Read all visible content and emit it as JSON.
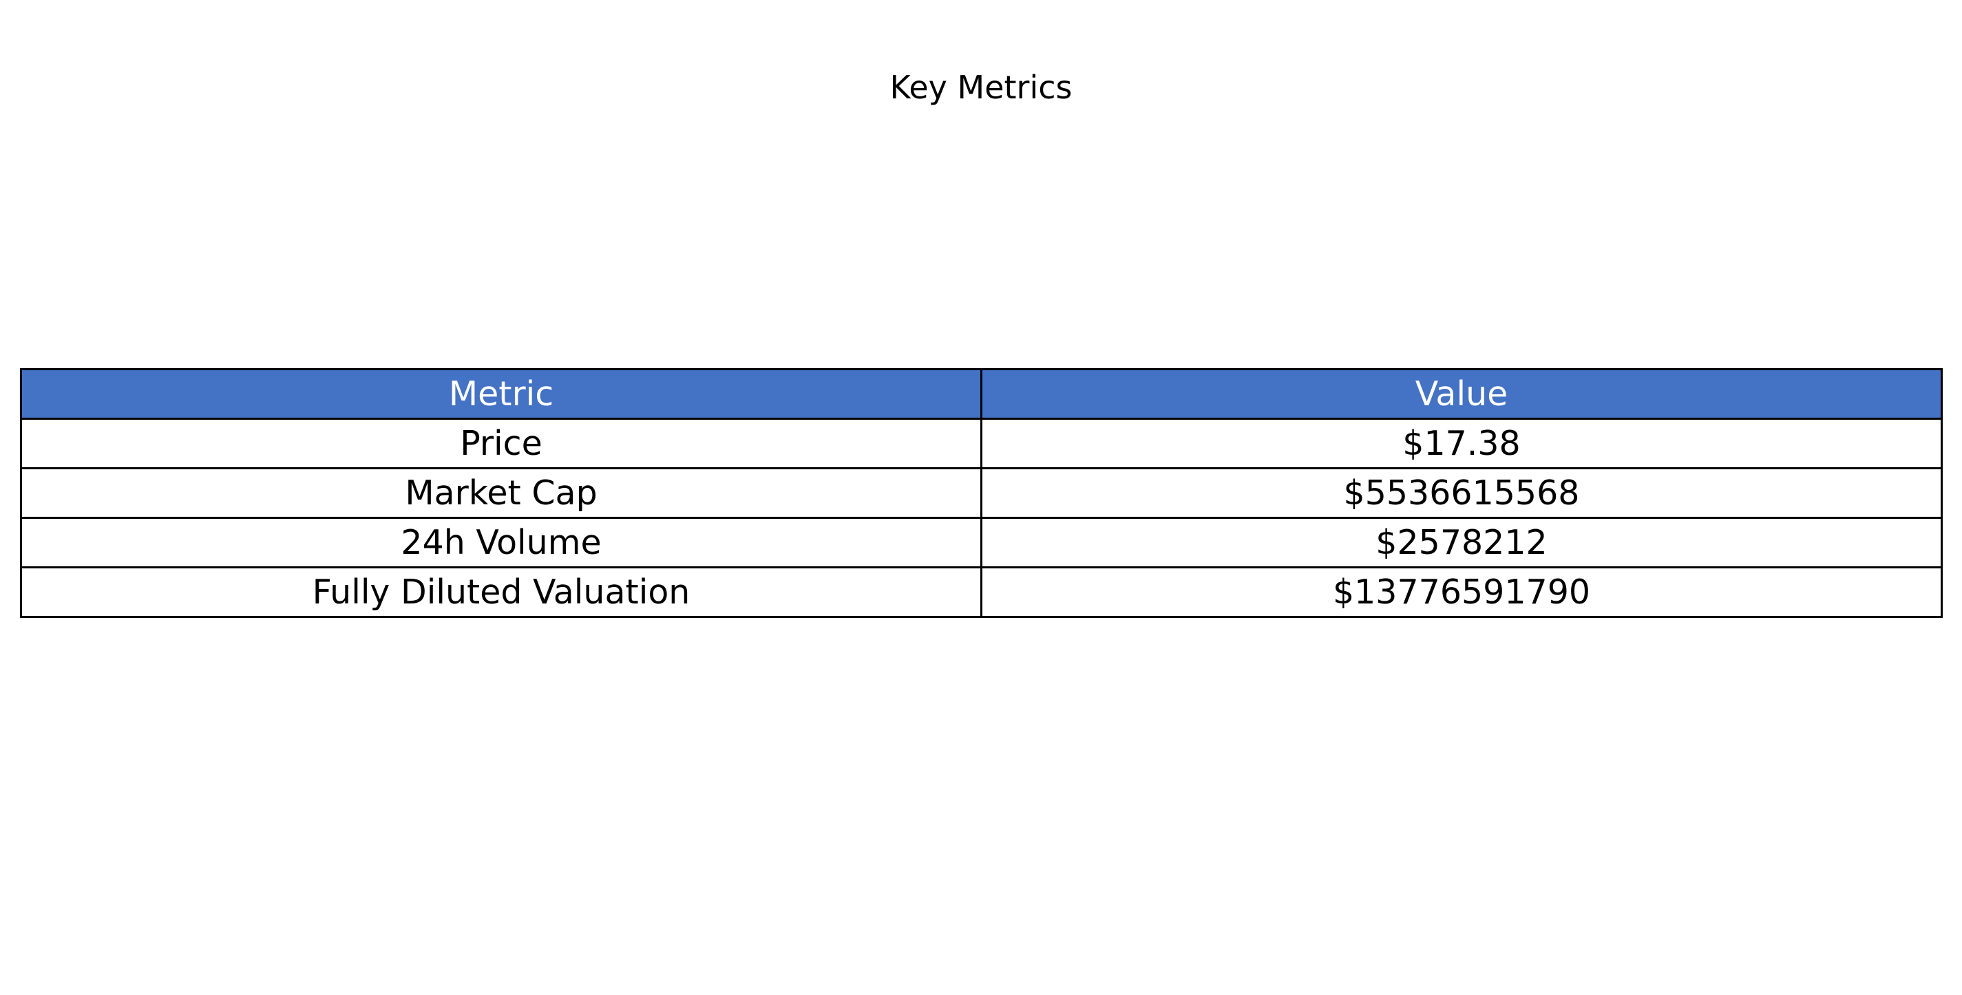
{
  "chart_data": {
    "type": "table",
    "title": "Key Metrics",
    "header_color": "#4472c4",
    "header_text_color": "#ffffff",
    "columns": [
      "Metric",
      "Value"
    ],
    "rows": [
      [
        "Price",
        "$17.38"
      ],
      [
        "Market Cap",
        "$5536615568"
      ],
      [
        "24h Volume",
        "$2578212"
      ],
      [
        "Fully Diluted Valuation",
        "$13776591790"
      ]
    ]
  }
}
